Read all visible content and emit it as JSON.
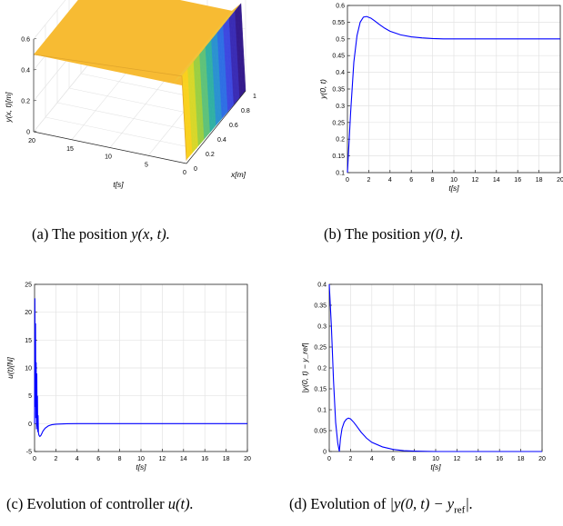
{
  "chart_data": [
    {
      "id": "a",
      "type": "surface",
      "caption_prefix": "(a) The position ",
      "caption_math": "y(x, t).",
      "zlabel": "y(x, t)[m]",
      "xlabel": "x[m]",
      "tlabel": "t[s]",
      "z_ticks": [
        "0",
        "0.2",
        "0.4",
        "0.6"
      ],
      "t_ticks": [
        "20",
        "15",
        "10",
        "5",
        "0"
      ],
      "x_ticks": [
        "0",
        "0.2",
        "0.4",
        "0.6",
        "0.8",
        "1"
      ],
      "zlim": [
        0,
        0.6
      ],
      "surface_level": 0.5
    },
    {
      "id": "b",
      "type": "line",
      "caption_prefix": "(b) The position ",
      "caption_math": "y(0, t).",
      "xlabel": "t[s]",
      "ylabel": "y(0, t)",
      "xlim": [
        0,
        20
      ],
      "ylim": [
        0.1,
        0.6
      ],
      "xticks": [
        0,
        2,
        4,
        6,
        8,
        10,
        12,
        14,
        16,
        18,
        20
      ],
      "yticks": [
        0.1,
        0.15,
        0.2,
        0.25,
        0.3,
        0.35,
        0.4,
        0.45,
        0.5,
        0.55,
        0.6
      ],
      "ytick_labels": [
        "0.1",
        "0.15",
        "0.2",
        "0.25",
        "0.3",
        "0.35",
        "0.4",
        "0.45",
        "0.5",
        "0.55",
        "0.6"
      ],
      "grid": true,
      "color": "#0000ff",
      "series": [
        {
          "x": [
            0,
            0.3,
            0.6,
            0.9,
            1.2,
            1.5,
            1.8,
            2.2,
            2.6,
            3,
            3.5,
            4,
            5,
            6,
            7,
            8,
            9,
            10,
            12,
            14,
            16,
            18,
            20
          ],
          "y": [
            0.1,
            0.28,
            0.43,
            0.51,
            0.55,
            0.565,
            0.567,
            0.562,
            0.553,
            0.543,
            0.532,
            0.523,
            0.512,
            0.506,
            0.503,
            0.501,
            0.5,
            0.5,
            0.5,
            0.5,
            0.5,
            0.5,
            0.5
          ]
        }
      ]
    },
    {
      "id": "c",
      "type": "line",
      "caption_prefix": "(c) Evolution of controller ",
      "caption_math": "u(t).",
      "xlabel": "t[s]",
      "ylabel": "u(t)[N]",
      "xlim": [
        0,
        20
      ],
      "ylim": [
        -5,
        25
      ],
      "xticks": [
        0,
        2,
        4,
        6,
        8,
        10,
        12,
        14,
        16,
        18,
        20
      ],
      "yticks": [
        -5,
        0,
        5,
        10,
        15,
        20,
        25
      ],
      "ytick_labels": [
        "-5",
        "0",
        "5",
        "10",
        "15",
        "20",
        "25"
      ],
      "grid": true,
      "color": "#0000ff",
      "series": [
        {
          "x": [
            0,
            0.03,
            0.06,
            0.09,
            0.12,
            0.15,
            0.18,
            0.21,
            0.24,
            0.27,
            0.3,
            0.33,
            0.36,
            0.4,
            0.45,
            0.5,
            0.6,
            0.7,
            0.8,
            1.0,
            1.3,
            1.6,
            2,
            2.5,
            3,
            4,
            6,
            8,
            10,
            12,
            14,
            16,
            18,
            20
          ],
          "y": [
            0,
            22.5,
            3,
            18,
            1,
            11,
            -1,
            9,
            -0.5,
            5,
            -1.5,
            1.5,
            -1.5,
            -2,
            -2.2,
            -2.3,
            -2.1,
            -1.7,
            -1.3,
            -0.8,
            -0.4,
            -0.2,
            -0.1,
            -0.05,
            -0.02,
            0,
            0,
            0,
            0,
            0,
            0,
            0,
            0,
            0
          ]
        }
      ]
    },
    {
      "id": "d",
      "type": "line",
      "caption_prefix": "(d) Evolution of ",
      "caption_math": "|y(0, t) − y",
      "caption_sub": "ref",
      "caption_suffix": "|.",
      "xlabel": "t[s]",
      "ylabel": "|y(0, t) − y_ref|",
      "xlim": [
        0,
        20
      ],
      "ylim": [
        0,
        0.4
      ],
      "xticks": [
        0,
        2,
        4,
        6,
        8,
        10,
        12,
        14,
        16,
        18,
        20
      ],
      "yticks": [
        0,
        0.05,
        0.1,
        0.15,
        0.2,
        0.25,
        0.3,
        0.35,
        0.4
      ],
      "ytick_labels": [
        "0",
        "0.05",
        "0.1",
        "0.15",
        "0.2",
        "0.25",
        "0.3",
        "0.35",
        "0.4"
      ],
      "grid": true,
      "color": "#0000ff",
      "series": [
        {
          "x": [
            0,
            0.2,
            0.4,
            0.6,
            0.8,
            0.95,
            1.05,
            1.2,
            1.4,
            1.6,
            1.8,
            2.0,
            2.3,
            2.6,
            3,
            3.5,
            4,
            5,
            6,
            7,
            8,
            10,
            12,
            14,
            16,
            18,
            20
          ],
          "y": [
            0.4,
            0.3,
            0.17,
            0.07,
            0.02,
            0.0,
            0.03,
            0.055,
            0.07,
            0.077,
            0.08,
            0.078,
            0.07,
            0.06,
            0.046,
            0.032,
            0.022,
            0.011,
            0.005,
            0.002,
            0.001,
            0,
            0,
            0,
            0,
            0,
            0
          ]
        }
      ]
    }
  ]
}
